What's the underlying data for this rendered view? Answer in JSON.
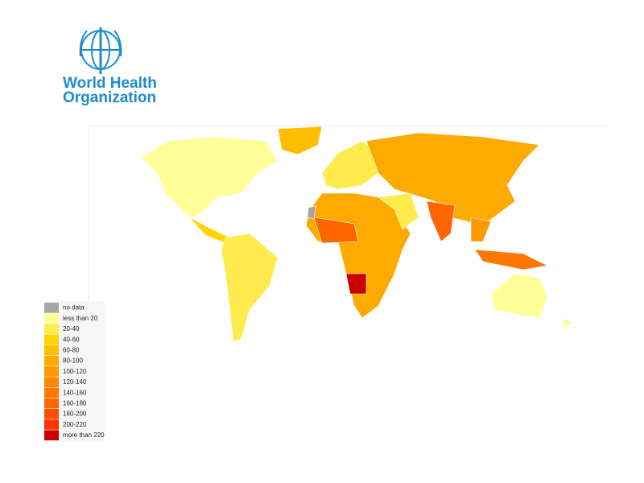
{
  "logo": {
    "line1": "World Health",
    "line2": "Organization",
    "color": "#1d8ccc"
  },
  "legend": {
    "items": [
      {
        "label": "no data",
        "color": "#a6a6a6"
      },
      {
        "label": "less than 20",
        "color": "#ffff99"
      },
      {
        "label": "20-40",
        "color": "#ffeb4d"
      },
      {
        "label": "40-60",
        "color": "#ffd400"
      },
      {
        "label": "60-80",
        "color": "#ffbf00"
      },
      {
        "label": "80-100",
        "color": "#ffaa00"
      },
      {
        "label": "100-120",
        "color": "#ff9900"
      },
      {
        "label": "120-140",
        "color": "#ff8800"
      },
      {
        "label": "140-160",
        "color": "#ff7700"
      },
      {
        "label": "160-180",
        "color": "#ff6600"
      },
      {
        "label": "180-200",
        "color": "#ff4d00"
      },
      {
        "label": "200-220",
        "color": "#ff3300"
      },
      {
        "label": "more than 220",
        "color": "#cc0000"
      }
    ]
  }
}
